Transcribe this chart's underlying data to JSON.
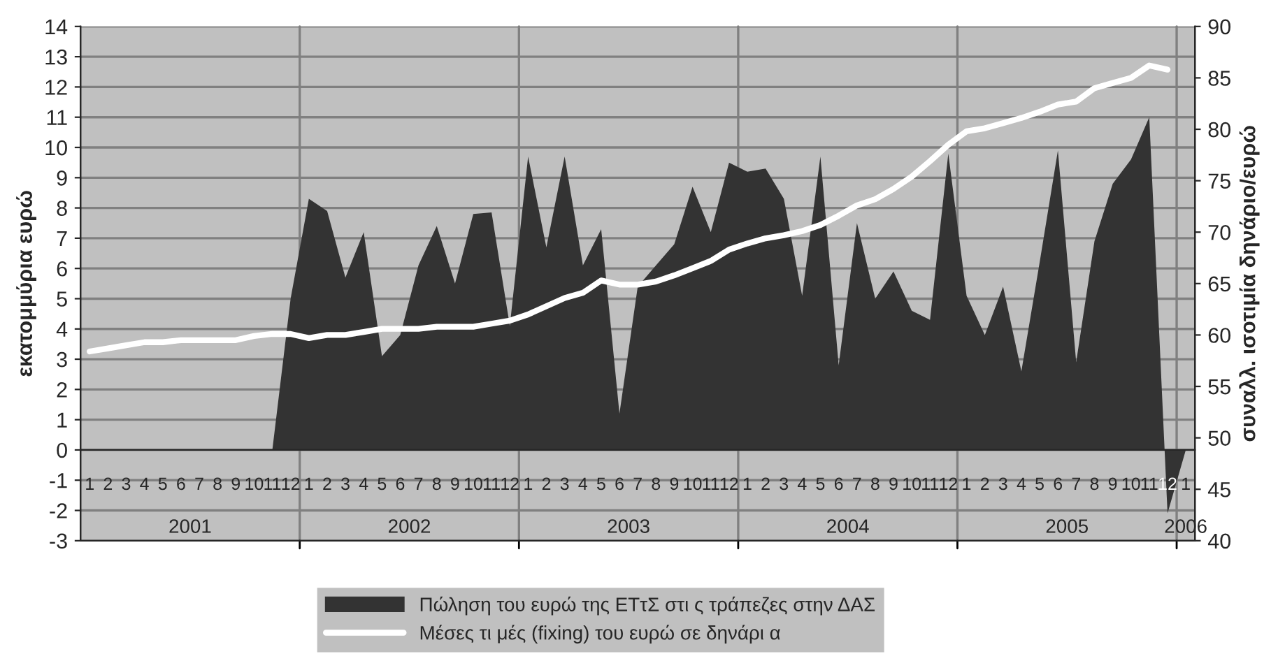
{
  "chart_data": {
    "type": "area",
    "categories": [
      "1",
      "2",
      "3",
      "4",
      "5",
      "6",
      "7",
      "8",
      "9",
      "10",
      "11",
      "12",
      "1",
      "2",
      "3",
      "4",
      "5",
      "6",
      "7",
      "8",
      "9",
      "10",
      "11",
      "12",
      "1",
      "2",
      "3",
      "4",
      "5",
      "6",
      "7",
      "8",
      "9",
      "10",
      "11",
      "12",
      "1",
      "2",
      "3",
      "4",
      "5",
      "6",
      "7",
      "8",
      "9",
      "10",
      "11",
      "12",
      "1",
      "2",
      "3",
      "4",
      "5",
      "6",
      "7",
      "8",
      "9",
      "10",
      "11",
      "12",
      "1"
    ],
    "annotations": [
      "2001",
      "2002",
      "2003",
      "2004",
      "2005",
      "2006"
    ],
    "ylabel": "εκατομμύρια ευρώ",
    "y2label": "συναλλ. ισοτιμία δηνάριο/ευρώ",
    "ylim": [
      -3,
      14
    ],
    "yticks": [
      -3,
      -2,
      -1,
      0,
      1,
      2,
      3,
      4,
      5,
      6,
      7,
      8,
      9,
      10,
      11,
      12,
      13,
      14
    ],
    "y2lim": [
      40,
      90
    ],
    "y2ticks": [
      40,
      45,
      50,
      55,
      60,
      65,
      70,
      75,
      80,
      85,
      90
    ],
    "grid": "y",
    "legend": "bottom",
    "series": [
      {
        "name": "Πώληση του ευρώ της ΕΤτΣ στι ς τράπεζες στην ΔΑΣ",
        "color": "#333333",
        "values": [
          0,
          0,
          0,
          0,
          0,
          0,
          0,
          0,
          0,
          0,
          0,
          5.0,
          8.3,
          7.9,
          5.7,
          7.2,
          3.1,
          3.8,
          6.1,
          7.4,
          5.5,
          7.8,
          7.85,
          4.1,
          9.7,
          6.7,
          9.7,
          6.1,
          7.3,
          1.2,
          5.4,
          6.1,
          6.8,
          8.7,
          7.2,
          9.5,
          9.2,
          9.3,
          8.3,
          5.1,
          9.7,
          2.8,
          7.5,
          5.0,
          5.9,
          4.6,
          4.3,
          9.8,
          5.1,
          3.8,
          5.4,
          2.6,
          6.2,
          9.9,
          2.9,
          6.9,
          8.8,
          9.6,
          11.0,
          -2.1,
          0
        ]
      },
      {
        "name": "Μέσες τι μές (fixing) του ευρώ σε δηνάρι α",
        "type": "line",
        "axis": "y2",
        "color": "#ffffff",
        "values": [
          58.4,
          58.7,
          59.0,
          59.3,
          59.3,
          59.5,
          59.5,
          59.5,
          59.5,
          59.9,
          60.1,
          60.1,
          59.7,
          60.0,
          60.0,
          60.3,
          60.6,
          60.6,
          60.6,
          60.8,
          60.8,
          60.8,
          61.1,
          61.4,
          62.0,
          62.8,
          63.6,
          64.1,
          65.3,
          64.9,
          64.9,
          65.2,
          65.8,
          66.5,
          67.2,
          68.3,
          68.9,
          69.4,
          69.7,
          70.1,
          70.7,
          71.6,
          72.6,
          73.2,
          74.2,
          75.4,
          76.9,
          78.5,
          79.8,
          80.1,
          80.6,
          81.1,
          81.7,
          82.4,
          82.7,
          84.0,
          84.5,
          85.0,
          86.2,
          85.8,
          null
        ]
      }
    ]
  }
}
